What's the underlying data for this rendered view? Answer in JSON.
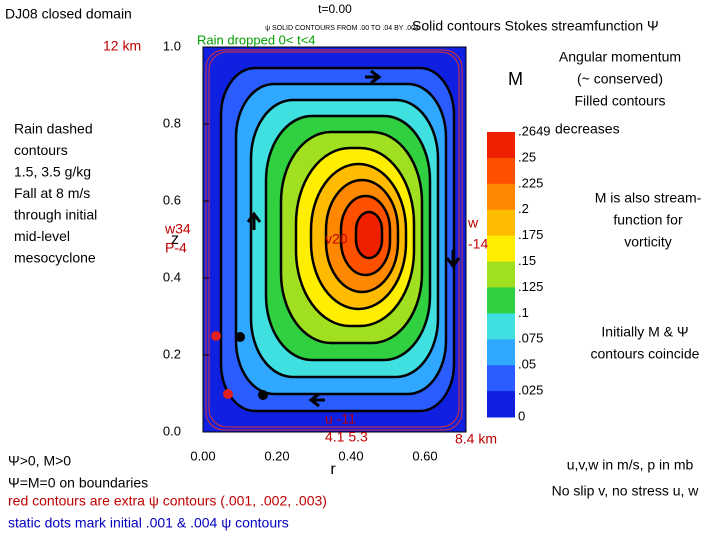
{
  "header": {
    "title": "DJ08 closed domain",
    "right_title": "Solid contours Stokes streamfunction Ψ"
  },
  "plot": {
    "time": "t=0.00",
    "subtitle": "ψ SOLID CONTOURS FROM .00 TO .04 BY .004",
    "x_label": "r",
    "y_label": "z",
    "x_ticks": [
      "0.00",
      "0.20",
      "0.40",
      "0.60"
    ],
    "y_ticks": [
      "0.0",
      "0.2",
      "0.4",
      "0.6",
      "0.8",
      "1.0"
    ],
    "colorbar_label": "M",
    "colorbar_ticks": [
      ".2649",
      ".25",
      ".225",
      ".2",
      ".175",
      ".15",
      ".125",
      ".1",
      ".075",
      ".05",
      ".025",
      "0"
    ]
  },
  "annotations": {
    "height": "12 km",
    "rain_dropped": "Rain dropped 0< t<4",
    "rain_note": [
      "Rain dashed",
      "contours",
      "1.5, 3.5 g/kg",
      "Fall at 8 m/s",
      "through initial",
      "mid-level",
      "mesocyclone"
    ],
    "w_left": [
      "w34",
      "P-4"
    ],
    "v_center": "v20",
    "w_right": [
      "w",
      "-14"
    ],
    "u_bottom": [
      "u -11",
      "4.1 5.3"
    ],
    "width": "8.4 km",
    "angular": [
      "Angular momentum",
      "(~ conserved)",
      "Filled contours"
    ],
    "decreases": "decreases",
    "stream_note": [
      "M is also stream-",
      "function for",
      "vorticity"
    ],
    "coincide": [
      "Initially M & Ψ",
      "contours coincide"
    ],
    "positive": "Ψ>0, M>0",
    "boundaries": "Ψ=M=0 on boundaries",
    "red_note": "red contours are extra ψ contours (.001, .002, .003)",
    "dots_note": "static dots mark initial .001 & .004  ψ contours",
    "units": "u,v,w in m/s, p in mb",
    "slip": "No slip v, no stress u, w"
  }
}
